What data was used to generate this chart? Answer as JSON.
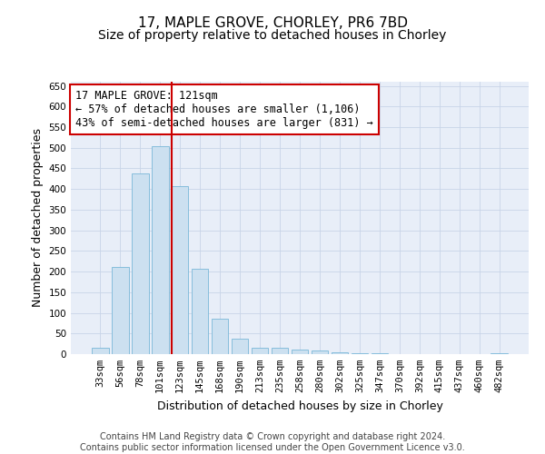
{
  "title_line1": "17, MAPLE GROVE, CHORLEY, PR6 7BD",
  "title_line2": "Size of property relative to detached houses in Chorley",
  "xlabel": "Distribution of detached houses by size in Chorley",
  "ylabel": "Number of detached properties",
  "categories": [
    "33sqm",
    "56sqm",
    "78sqm",
    "101sqm",
    "123sqm",
    "145sqm",
    "168sqm",
    "190sqm",
    "213sqm",
    "235sqm",
    "258sqm",
    "280sqm",
    "302sqm",
    "325sqm",
    "347sqm",
    "370sqm",
    "392sqm",
    "415sqm",
    "437sqm",
    "460sqm",
    "482sqm"
  ],
  "values": [
    15,
    212,
    437,
    503,
    408,
    207,
    85,
    38,
    15,
    15,
    10,
    8,
    5,
    3,
    2,
    1,
    1,
    1,
    0,
    0,
    3
  ],
  "bar_color": "#cce0f0",
  "bar_edge_color": "#7ab8d8",
  "vline_index": 4,
  "vline_color": "#cc0000",
  "annotation_text": "17 MAPLE GROVE: 121sqm\n← 57% of detached houses are smaller (1,106)\n43% of semi-detached houses are larger (831) →",
  "annotation_box_color": "#ffffff",
  "annotation_box_edge_color": "#cc0000",
  "ylim": [
    0,
    660
  ],
  "yticks": [
    0,
    50,
    100,
    150,
    200,
    250,
    300,
    350,
    400,
    450,
    500,
    550,
    600,
    650
  ],
  "background_color": "#ffffff",
  "plot_bg_color": "#e8eef8",
  "grid_color": "#c8d4e8",
  "footer_text": "Contains HM Land Registry data © Crown copyright and database right 2024.\nContains public sector information licensed under the Open Government Licence v3.0.",
  "title_fontsize": 11,
  "subtitle_fontsize": 10,
  "axis_label_fontsize": 9,
  "tick_fontsize": 7.5,
  "annotation_fontsize": 8.5,
  "footer_fontsize": 7
}
